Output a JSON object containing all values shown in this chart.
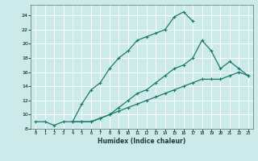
{
  "xlabel": "Humidex (Indice chaleur)",
  "ylabel": "",
  "bg_color": "#cceaea",
  "grid_color": "#ffffff",
  "line_color": "#1a7a6a",
  "xlim": [
    -0.5,
    23.5
  ],
  "ylim": [
    8,
    25.5
  ],
  "xticks": [
    0,
    1,
    2,
    3,
    4,
    5,
    6,
    7,
    8,
    9,
    10,
    11,
    12,
    13,
    14,
    15,
    16,
    17,
    18,
    19,
    20,
    21,
    22,
    23
  ],
  "yticks": [
    8,
    10,
    12,
    14,
    16,
    18,
    20,
    22,
    24
  ],
  "series1_x": [
    0,
    1,
    2,
    3,
    4,
    5,
    6,
    7,
    8,
    9,
    10,
    11,
    12,
    13,
    14,
    15,
    16,
    17
  ],
  "series1_y": [
    9,
    9,
    8.5,
    9,
    9,
    11.5,
    13.5,
    14.5,
    16.5,
    18,
    19,
    20.5,
    21,
    21.5,
    22,
    23.8,
    24.5,
    23.2
  ],
  "series2_x": [
    4,
    5,
    6,
    7,
    8,
    9,
    10,
    11,
    12,
    13,
    14,
    15,
    16,
    17,
    18,
    19,
    20,
    21,
    22,
    23
  ],
  "series2_y": [
    9,
    9,
    9,
    9.5,
    10,
    10.5,
    11,
    11.5,
    12,
    12.5,
    13,
    13.5,
    14,
    14.5,
    15,
    15,
    15,
    15.5,
    16,
    15.5
  ],
  "series3_x": [
    4,
    5,
    6,
    7,
    8,
    9,
    10,
    11,
    12,
    13,
    14,
    15,
    16,
    17,
    18,
    19,
    20,
    21,
    22,
    23
  ],
  "series3_y": [
    9,
    9,
    9,
    9.5,
    10,
    11,
    12,
    13,
    13.5,
    14.5,
    15.5,
    16.5,
    17,
    18,
    20.5,
    19,
    16.5,
    17.5,
    16.5,
    15.5
  ]
}
